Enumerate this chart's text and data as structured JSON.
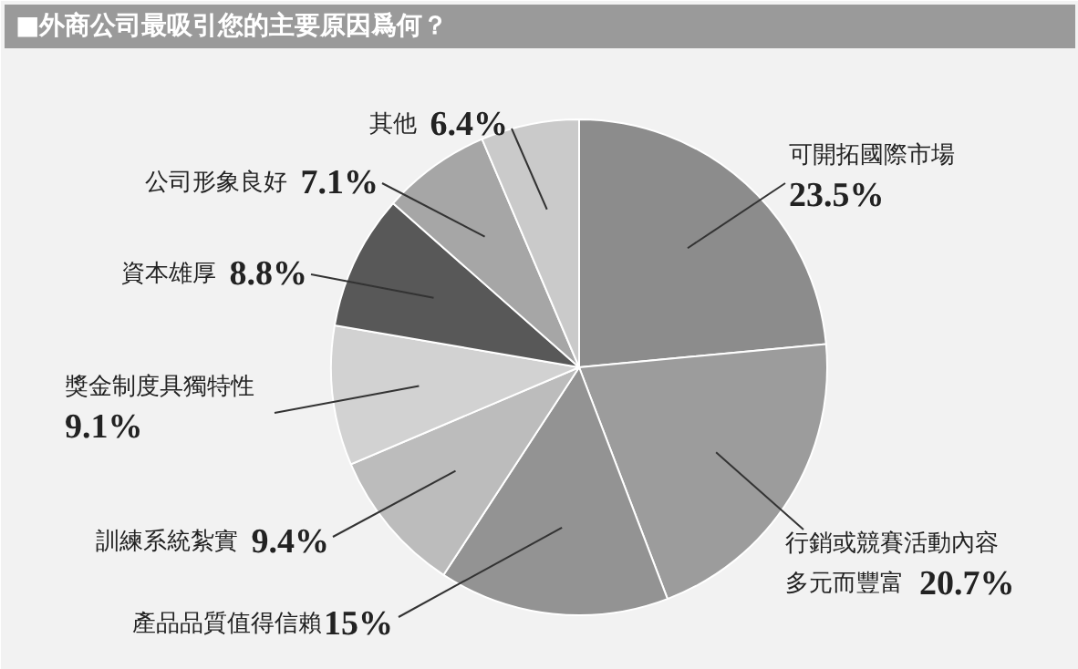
{
  "chart_data": {
    "type": "pie",
    "title": "■外商公司最吸引您的主要原因爲何？",
    "categories": [
      "可開拓國際市場",
      "行銷或競賽活動內容多元而豐富",
      "產品品質值得信賴",
      "訓練系統紮實",
      "獎金制度具獨特性",
      "資本雄厚",
      "公司形象良好",
      "其他"
    ],
    "values": [
      23.5,
      20.7,
      15,
      9.4,
      9.1,
      8.8,
      7.1,
      6.4
    ],
    "colors": [
      "#8c8c8c",
      "#9c9c9c",
      "#939393",
      "#bcbcbc",
      "#d2d2d2",
      "#585858",
      "#a6a6a6",
      "#cacaca"
    ],
    "value_labels": [
      "23.5%",
      "20.7%",
      "15%",
      "9.4%",
      "9.1%",
      "8.8%",
      "7.1%",
      "6.4%"
    ]
  }
}
